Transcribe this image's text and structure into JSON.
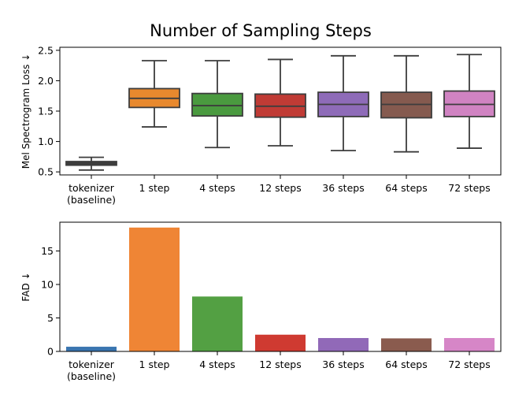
{
  "title": "Number of Sampling Steps",
  "chart_data": [
    {
      "type": "box",
      "ylabel": "Mel Spectrogram Loss ↓",
      "ylim": [
        0.45,
        2.55
      ],
      "yticks": [
        "0.5",
        "1.0",
        "1.5",
        "2.0",
        "2.5"
      ],
      "categories": [
        [
          "tokenizer",
          "(baseline)"
        ],
        [
          "1 step"
        ],
        [
          "4 steps"
        ],
        [
          "12 steps"
        ],
        [
          "36 steps"
        ],
        [
          "64 steps"
        ],
        [
          "72 steps"
        ]
      ],
      "colors": [
        "#3b3b3b",
        "#e8892e",
        "#4a9a3f",
        "#c03b35",
        "#8e6bb8",
        "#855a4f",
        "#d083c2"
      ],
      "boxes": [
        {
          "whislo": 0.53,
          "q1": 0.61,
          "med": 0.64,
          "q3": 0.67,
          "whishi": 0.74
        },
        {
          "whislo": 1.24,
          "q1": 1.56,
          "med": 1.71,
          "q3": 1.87,
          "whishi": 2.33
        },
        {
          "whislo": 0.9,
          "q1": 1.42,
          "med": 1.59,
          "q3": 1.79,
          "whishi": 2.33
        },
        {
          "whislo": 0.93,
          "q1": 1.4,
          "med": 1.58,
          "q3": 1.78,
          "whishi": 2.35
        },
        {
          "whislo": 0.85,
          "q1": 1.41,
          "med": 1.61,
          "q3": 1.81,
          "whishi": 2.41
        },
        {
          "whislo": 0.83,
          "q1": 1.39,
          "med": 1.61,
          "q3": 1.81,
          "whishi": 2.41
        },
        {
          "whislo": 0.89,
          "q1": 1.41,
          "med": 1.61,
          "q3": 1.83,
          "whishi": 2.43
        }
      ]
    },
    {
      "type": "bar",
      "ylabel": "FAD ↓",
      "ylim": [
        0,
        19.3
      ],
      "yticks": [
        "0",
        "5",
        "10",
        "15"
      ],
      "categories": [
        [
          "tokenizer",
          "(baseline)"
        ],
        [
          "1 step"
        ],
        [
          "4 steps"
        ],
        [
          "12 steps"
        ],
        [
          "36 steps"
        ],
        [
          "64 steps"
        ],
        [
          "72 steps"
        ]
      ],
      "colors": [
        "#3a75b0",
        "#ef8535",
        "#53a043",
        "#cf3a31",
        "#9169b8",
        "#8a5b4e",
        "#d686c7"
      ],
      "values": [
        0.7,
        18.5,
        8.2,
        2.5,
        2.0,
        1.95,
        2.0
      ]
    }
  ]
}
